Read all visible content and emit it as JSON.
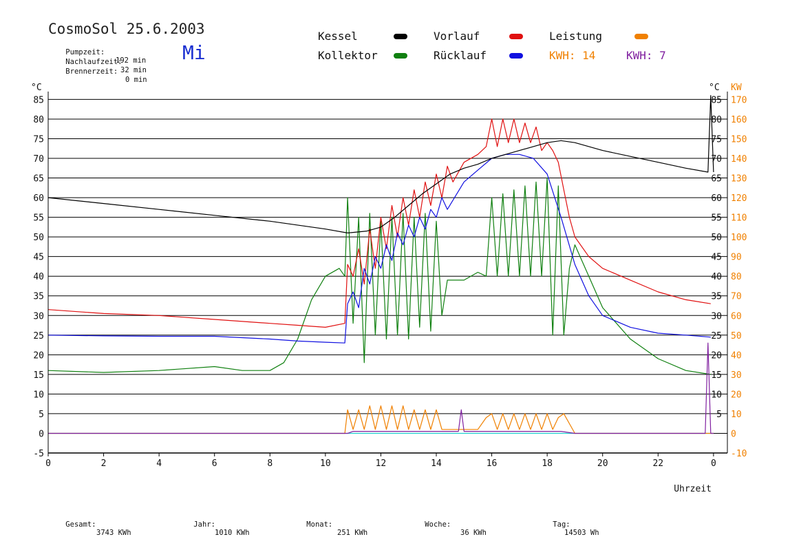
{
  "header": {
    "title": "CosmoSol 25.6.2003",
    "pumpzeit_label": "Pumpzeit:",
    "pumpzeit_value": "192 min",
    "nachlauf_label": "Nachlaufzeit:",
    "nachlauf_value": "32 min",
    "brenner_label": "Brennerzeit:",
    "brenner_value": "0 min",
    "day": "Mi"
  },
  "legend": {
    "kessel": "Kessel",
    "vorlauf": "Vorlauf",
    "leistung": "Leistung",
    "kollektor": "Kollektor",
    "ruecklauf": "Rücklauf",
    "kwh1": "KWH: 14",
    "kwh2": "KWH: 7"
  },
  "colors": {
    "kessel": "#000000",
    "vorlauf": "#e01010",
    "ruecklauf": "#1010e0",
    "kollektor": "#108010",
    "leistung": "#f08000",
    "kwh2": "#8020a0",
    "baseline": "#20d0d0"
  },
  "footer": {
    "gesamt_label": "Gesamt:",
    "gesamt_value": "3743 KWh",
    "jahr_label": "Jahr:",
    "jahr_value": "1010 KWh",
    "monat_label": "Monat:",
    "monat_value": "251 KWh",
    "woche_label": "Woche:",
    "woche_value": "36 KWh",
    "tag_label": "Tag:",
    "tag_value": "14503 Wh"
  },
  "chart_data": {
    "type": "line",
    "xlabel": "Uhrzeit",
    "ylabel_left": "°C",
    "ylabel_right_1": "°C",
    "ylabel_right_2": "KW",
    "xlim": [
      0,
      24.5
    ],
    "ylim": [
      -5,
      87
    ],
    "x_ticks": [
      0,
      2,
      4,
      6,
      8,
      10,
      12,
      14,
      16,
      18,
      20,
      22
    ],
    "x_tick_labels": [
      "0",
      "2",
      "4",
      "6",
      "8",
      "10",
      "12",
      "14",
      "16",
      "18",
      "20",
      "22",
      "0"
    ],
    "x_end_label_position": 24,
    "y_ticks": [
      -5,
      0,
      5,
      10,
      15,
      20,
      25,
      30,
      35,
      40,
      45,
      50,
      55,
      60,
      65,
      70,
      75,
      80,
      85
    ],
    "right_celsius_ticks": [
      5,
      10,
      15,
      20,
      25,
      30,
      35,
      40,
      45,
      50,
      55,
      60,
      65,
      70,
      75,
      80,
      85
    ],
    "right_kw_ticks": [
      -10,
      0,
      10,
      20,
      30,
      40,
      50,
      60,
      70,
      80,
      90,
      100,
      110,
      120,
      130,
      140,
      150,
      160,
      170
    ],
    "grid": "horizontal",
    "series": [
      {
        "name": "Kessel",
        "x": [
          0,
          2,
          4,
          6,
          8,
          10,
          10.8,
          11.5,
          12,
          12.5,
          13,
          13.5,
          14,
          14.5,
          15,
          15.5,
          16,
          16.5,
          17,
          17.5,
          18,
          18.5,
          19,
          20,
          21,
          22,
          23,
          23.8,
          23.9,
          24
        ],
        "y": [
          60,
          58.5,
          57,
          55.5,
          54,
          52,
          51,
          51.5,
          52.5,
          55,
          58,
          61,
          63.5,
          66,
          67.5,
          68.5,
          70,
          71,
          72,
          73,
          74,
          74.5,
          74,
          72,
          70.5,
          69,
          67.5,
          66.5,
          86,
          66.5
        ]
      },
      {
        "name": "Vorlauf",
        "x": [
          0,
          2,
          4,
          6,
          8,
          9,
          10,
          10.7,
          10.8,
          11,
          11.2,
          11.4,
          11.6,
          11.8,
          12,
          12.2,
          12.4,
          12.6,
          12.8,
          13,
          13.2,
          13.4,
          13.6,
          13.8,
          14,
          14.2,
          14.4,
          14.6,
          15,
          15.5,
          15.8,
          16,
          16.2,
          16.4,
          16.6,
          16.8,
          17,
          17.2,
          17.4,
          17.6,
          17.8,
          18,
          18.2,
          18.4,
          18.6,
          18.8,
          19,
          19.5,
          20,
          21,
          22,
          23,
          23.9
        ],
        "y": [
          31.5,
          30.5,
          30,
          29,
          28,
          27.5,
          27,
          28,
          43,
          40,
          47,
          38,
          52,
          42,
          55,
          47,
          58,
          50,
          60,
          53,
          62,
          55,
          64,
          58,
          66,
          60,
          68,
          64,
          69,
          71,
          73,
          80,
          73,
          80,
          74,
          80,
          74,
          79,
          74,
          78,
          72,
          74,
          72,
          69,
          62,
          55,
          50,
          45,
          42,
          39,
          36,
          34,
          33
        ]
      },
      {
        "name": "Rücklauf",
        "x": [
          0,
          2,
          4,
          6,
          8,
          9,
          10,
          10.7,
          10.8,
          11,
          11.2,
          11.4,
          11.6,
          11.8,
          12,
          12.2,
          12.4,
          12.6,
          12.8,
          13,
          13.2,
          13.4,
          13.6,
          13.8,
          14,
          14.2,
          14.4,
          15,
          15.5,
          16,
          16.5,
          17,
          17.5,
          18,
          18.5,
          19,
          19.5,
          20,
          21,
          22,
          23,
          23.9
        ],
        "y": [
          25,
          24.8,
          24.7,
          24.7,
          24,
          23.5,
          23.2,
          23,
          33,
          36,
          32,
          42,
          38,
          45,
          42,
          48,
          44,
          51,
          48,
          53,
          50,
          55,
          52,
          57,
          55,
          60,
          57,
          64,
          67,
          70,
          71,
          71,
          70,
          66,
          55,
          43,
          35,
          30,
          27,
          25.5,
          25,
          24.5
        ]
      },
      {
        "name": "Kollektor",
        "x": [
          0,
          2,
          4,
          6,
          7,
          8,
          8.5,
          9,
          9.5,
          10,
          10.5,
          10.7,
          10.8,
          11,
          11.2,
          11.4,
          11.6,
          11.8,
          12,
          12.2,
          12.4,
          12.6,
          12.8,
          13,
          13.2,
          13.4,
          13.6,
          13.8,
          14,
          14.2,
          14.4,
          15,
          15.5,
          15.8,
          16,
          16.2,
          16.4,
          16.6,
          16.8,
          17,
          17.2,
          17.4,
          17.6,
          17.8,
          18,
          18.2,
          18.4,
          18.6,
          18.8,
          19,
          19.5,
          20,
          21,
          22,
          23,
          23.9
        ],
        "y": [
          16,
          15.5,
          16,
          17,
          16,
          16,
          18,
          24,
          34,
          40,
          42,
          40,
          60,
          28,
          55,
          18,
          56,
          25,
          54,
          24,
          55,
          25,
          56,
          24,
          55,
          27,
          56,
          26,
          54,
          30,
          39,
          39,
          41,
          40,
          60,
          40,
          61,
          40,
          62,
          40,
          63,
          40,
          64,
          40,
          65,
          25,
          63,
          25,
          42,
          48,
          40,
          32,
          24,
          19,
          16,
          15
        ]
      },
      {
        "name": "Leistung",
        "x": [
          0,
          10.7,
          10.8,
          11,
          11.2,
          11.4,
          11.6,
          11.8,
          12,
          12.2,
          12.4,
          12.6,
          12.8,
          13,
          13.2,
          13.4,
          13.6,
          13.8,
          14,
          14.2,
          15,
          15.5,
          15.8,
          16,
          16.2,
          16.4,
          16.6,
          16.8,
          17,
          17.2,
          17.4,
          17.6,
          17.8,
          18,
          18.2,
          18.4,
          18.6,
          19,
          24
        ],
        "y": [
          0,
          0,
          6,
          1,
          6,
          1,
          7,
          1,
          7,
          1,
          7,
          1,
          7,
          1,
          6,
          1,
          6,
          1,
          6,
          1,
          1,
          1,
          4,
          5,
          1,
          5,
          1,
          5,
          1,
          5,
          1,
          5,
          1,
          5,
          1,
          4,
          5,
          0,
          0
        ]
      },
      {
        "name": "KWH: 7",
        "x": [
          0,
          10.8,
          11,
          12,
          13,
          14,
          14.8,
          14.9,
          15,
          16,
          17,
          18,
          18.5,
          19,
          23.7,
          23.8,
          23.9,
          24
        ],
        "y": [
          0,
          0,
          0.5,
          0.5,
          0.5,
          0.5,
          0.5,
          6,
          0.5,
          0.5,
          0.5,
          0.5,
          0.5,
          0,
          0,
          23,
          0,
          0
        ]
      },
      {
        "name": "",
        "x": [
          0,
          24
        ],
        "y": [
          0,
          0
        ]
      }
    ]
  }
}
